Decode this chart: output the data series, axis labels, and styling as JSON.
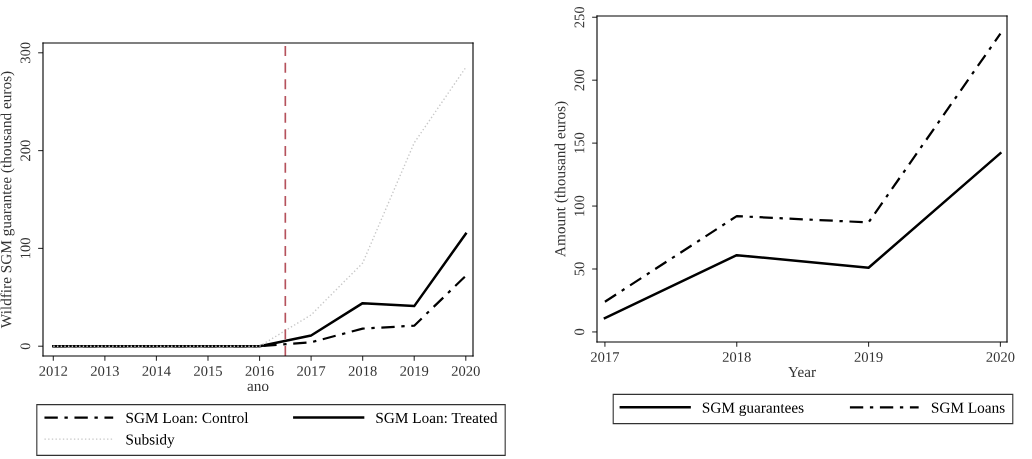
{
  "chart_data": [
    {
      "type": "line",
      "xlabel": "ano",
      "ylabel": "Wildfire SGM guarantee (thousand euros)",
      "x": [
        2012,
        2013,
        2014,
        2015,
        2016,
        2017,
        2018,
        2019,
        2020
      ],
      "series": [
        {
          "name": "SGM Loan: Control",
          "color": "#000000",
          "line_style": "dashdot",
          "values": [
            0,
            0,
            0,
            0,
            0,
            4,
            18,
            21,
            72
          ]
        },
        {
          "name": "SGM Loan: Treated",
          "color": "#000000",
          "line_style": "solid",
          "values": [
            0,
            0,
            0,
            0,
            0,
            11,
            44,
            41,
            115
          ]
        },
        {
          "name": "Subsidy",
          "color": "#c8c8c8",
          "line_style": "dotted",
          "values": [
            0,
            0,
            0,
            0,
            0,
            32,
            85,
            208,
            285
          ]
        }
      ],
      "ref_lines": [
        {
          "axis": "x",
          "value": 2016.5,
          "color": "#b5525c",
          "line_style": "dashed"
        }
      ],
      "xlim": [
        2011.8,
        2020.14
      ],
      "ylim": [
        -10,
        310
      ],
      "xticks": [
        2012,
        2013,
        2014,
        2015,
        2016,
        2017,
        2018,
        2019,
        2020
      ],
      "yticks": [
        0,
        100,
        200,
        300
      ],
      "grid": false,
      "legend": "bottom"
    },
    {
      "type": "line",
      "xlabel": "Year",
      "ylabel": "Amount (thousand euros)",
      "x": [
        2017,
        2018,
        2019,
        2020
      ],
      "series": [
        {
          "name": "SGM guarantees",
          "color": "#000000",
          "line_style": "solid",
          "values": [
            11,
            61,
            51,
            142
          ]
        },
        {
          "name": "SGM Loans",
          "color": "#000000",
          "line_style": "dashdot",
          "values": [
            24,
            92,
            87,
            237
          ]
        }
      ],
      "xlim": [
        2016.94,
        2020.05
      ],
      "ylim": [
        -8,
        251
      ],
      "xticks": [
        2017,
        2018,
        2019,
        2020
      ],
      "yticks": [
        0,
        50,
        100,
        150,
        200,
        250
      ],
      "grid": false,
      "legend": "bottom"
    }
  ]
}
